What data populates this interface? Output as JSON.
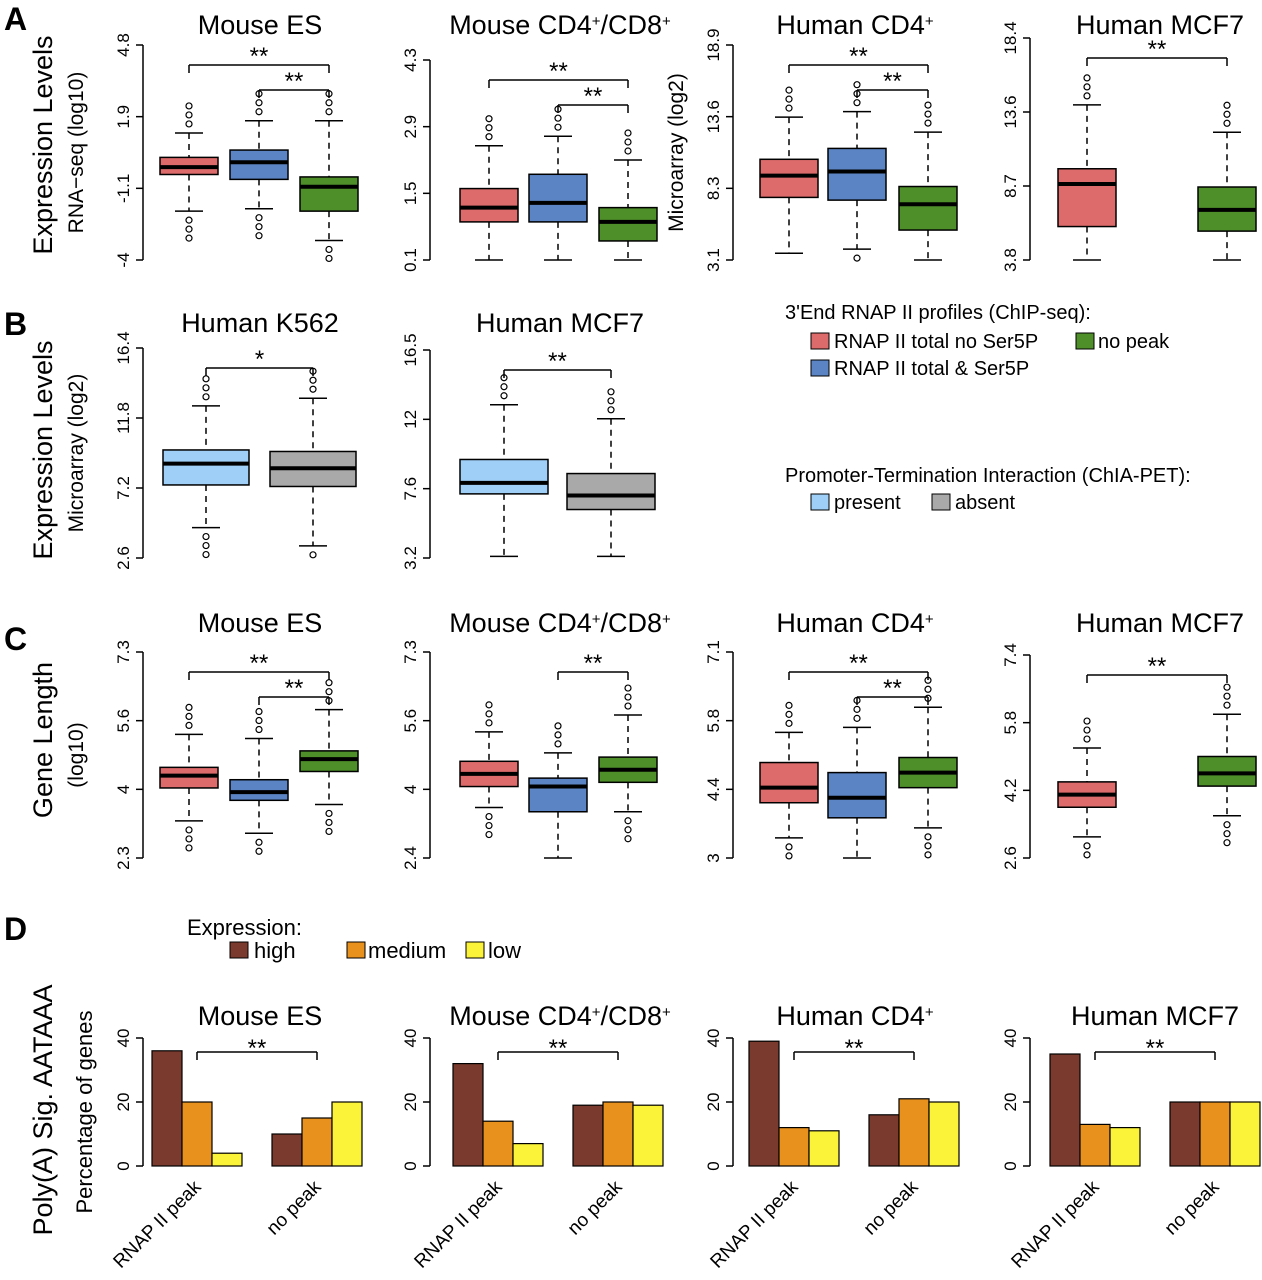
{
  "colors": {
    "red": "#de6b6b",
    "blue": "#5b84c4",
    "green": "#4e8f2a",
    "lightblue": "#9fcff7",
    "grey": "#a9a9a9",
    "high": "#7a3b2e",
    "medium": "#e8911c",
    "low": "#fbf23a"
  },
  "panel_letters": [
    "A",
    "B",
    "C",
    "D"
  ],
  "row_labels": {
    "A": "Expression Levels",
    "B": "Expression Levels",
    "C": "Gene Length",
    "D": "Poly(A) Sig. AATAAA"
  },
  "legend_rnap": {
    "title": "3'End RNAP II profiles (ChIP-seq):",
    "items": [
      {
        "label": "RNAP II total no Ser5P",
        "color": "red"
      },
      {
        "label": "no peak",
        "color": "green"
      },
      {
        "label": "RNAP II total & Ser5P",
        "color": "blue"
      }
    ]
  },
  "legend_chia": {
    "title": "Promoter-Termination Interaction (ChIA-PET):",
    "items": [
      {
        "label": "present",
        "color": "lightblue"
      },
      {
        "label": "absent",
        "color": "grey"
      }
    ]
  },
  "legend_expr": {
    "title": "Expression:",
    "items": [
      {
        "label": "high",
        "color": "high"
      },
      {
        "label": "medium",
        "color": "medium"
      },
      {
        "label": "low",
        "color": "low"
      }
    ]
  },
  "chart_data": [
    {
      "type": "box",
      "panel": "A",
      "title": "Mouse ES",
      "ylabel": "RNA−seq (log10)",
      "yticks": [
        "-4",
        "-1.1",
        "1.9",
        "4.8"
      ],
      "ylim": [
        -4,
        4.8
      ],
      "boxes": [
        {
          "color": "red",
          "whisker_low": -2.0,
          "q1": -0.5,
          "median": -0.2,
          "q3": 0.2,
          "whisker_high": 1.2
        },
        {
          "color": "blue",
          "whisker_low": -1.9,
          "q1": -0.7,
          "median": 0.0,
          "q3": 0.5,
          "whisker_high": 1.7
        },
        {
          "color": "green",
          "whisker_low": -3.2,
          "q1": -2.0,
          "median": -1.0,
          "q3": -0.6,
          "whisker_high": 1.7
        }
      ],
      "significance": [
        {
          "label": "**",
          "from": 1,
          "to": 3
        },
        {
          "label": "**",
          "from": 2,
          "to": 3
        }
      ]
    },
    {
      "type": "box",
      "panel": "A",
      "title": "Mouse CD4+/CD8+",
      "ylabel": "",
      "yticks": [
        "0.1",
        "1.5",
        "2.9",
        "4.3"
      ],
      "ylim": [
        0.1,
        4.3
      ],
      "boxes": [
        {
          "color": "red",
          "whisker_low": 0.1,
          "q1": 0.9,
          "median": 1.2,
          "q3": 1.6,
          "whisker_high": 2.5
        },
        {
          "color": "blue",
          "whisker_low": 0.1,
          "q1": 0.9,
          "median": 1.3,
          "q3": 1.9,
          "whisker_high": 2.7
        },
        {
          "color": "green",
          "whisker_low": 0.1,
          "q1": 0.5,
          "median": 0.9,
          "q3": 1.2,
          "whisker_high": 2.2
        }
      ],
      "significance": [
        {
          "label": "**",
          "from": 1,
          "to": 3
        },
        {
          "label": "**",
          "from": 2,
          "to": 3
        }
      ]
    },
    {
      "type": "box",
      "panel": "A",
      "title": "Human CD4+",
      "ylabel": "Microarray (log2)",
      "yticks": [
        "3.1",
        "8.3",
        "13.6",
        "18.9"
      ],
      "ylim": [
        3.1,
        18.9
      ],
      "boxes": [
        {
          "color": "red",
          "whisker_low": 3.6,
          "q1": 7.7,
          "median": 9.3,
          "q3": 10.5,
          "whisker_high": 13.6
        },
        {
          "color": "blue",
          "whisker_low": 3.9,
          "q1": 7.5,
          "median": 9.6,
          "q3": 11.3,
          "whisker_high": 14.0
        },
        {
          "color": "green",
          "whisker_low": 3.1,
          "q1": 5.3,
          "median": 7.2,
          "q3": 8.5,
          "whisker_high": 12.5
        }
      ],
      "significance": [
        {
          "label": "**",
          "from": 1,
          "to": 3
        },
        {
          "label": "**",
          "from": 2,
          "to": 3
        }
      ]
    },
    {
      "type": "box",
      "panel": "A",
      "title": "Human MCF7",
      "ylabel": "",
      "yticks": [
        "3.8",
        "8.7",
        "13.6",
        "18.4"
      ],
      "ylim": [
        3.8,
        18.4
      ],
      "boxes": [
        {
          "color": "red",
          "whisker_low": 3.8,
          "q1": 6.0,
          "median": 8.8,
          "q3": 9.8,
          "whisker_high": 14.0
        },
        {
          "color": "green",
          "whisker_low": 3.8,
          "q1": 5.7,
          "median": 7.1,
          "q3": 8.6,
          "whisker_high": 12.2
        }
      ],
      "significance": [
        {
          "label": "**",
          "from": 1,
          "to": 3
        }
      ]
    },
    {
      "type": "box",
      "panel": "B",
      "title": "Human K562",
      "ylabel": "Microarray (log2)",
      "yticks": [
        "2.6",
        "7.2",
        "11.8",
        "16.4"
      ],
      "ylim": [
        2.6,
        16.4
      ],
      "boxes": [
        {
          "color": "lightblue",
          "whisker_low": 4.6,
          "q1": 7.4,
          "median": 8.8,
          "q3": 9.7,
          "whisker_high": 12.6
        },
        {
          "color": "grey",
          "whisker_low": 3.4,
          "q1": 7.3,
          "median": 8.5,
          "q3": 9.6,
          "whisker_high": 13.1
        }
      ],
      "significance": [
        {
          "label": "*",
          "from": 1,
          "to": 2
        }
      ]
    },
    {
      "type": "box",
      "panel": "B",
      "title": "Human MCF7",
      "ylabel": "",
      "yticks": [
        "3.2",
        "7.6",
        "12",
        "16.5"
      ],
      "ylim": [
        3.2,
        16.5
      ],
      "boxes": [
        {
          "color": "lightblue",
          "whisker_low": 3.3,
          "q1": 7.3,
          "median": 8.0,
          "q3": 9.5,
          "whisker_high": 13.0
        },
        {
          "color": "grey",
          "whisker_low": 3.3,
          "q1": 6.3,
          "median": 7.2,
          "q3": 8.6,
          "whisker_high": 12.1
        }
      ],
      "significance": [
        {
          "label": "**",
          "from": 1,
          "to": 2
        }
      ]
    },
    {
      "type": "box",
      "panel": "C",
      "title": "Mouse ES",
      "ylabel": "(log10)",
      "yticks": [
        "2.3",
        "4",
        "5.6",
        "7.3"
      ],
      "ylim": [
        2.3,
        7.3
      ],
      "boxes": [
        {
          "color": "red",
          "whisker_low": 3.2,
          "q1": 4.0,
          "median": 4.3,
          "q3": 4.5,
          "whisker_high": 5.3
        },
        {
          "color": "blue",
          "whisker_low": 2.9,
          "q1": 3.7,
          "median": 3.9,
          "q3": 4.2,
          "whisker_high": 5.2
        },
        {
          "color": "green",
          "whisker_low": 3.6,
          "q1": 4.4,
          "median": 4.7,
          "q3": 4.9,
          "whisker_high": 5.9
        }
      ],
      "significance": [
        {
          "label": "**",
          "from": 1,
          "to": 3
        },
        {
          "label": "**",
          "from": 2,
          "to": 3
        }
      ]
    },
    {
      "type": "box",
      "panel": "C",
      "title": "Mouse CD4+/CD8+",
      "ylabel": "",
      "yticks": [
        "2.4",
        "4",
        "5.6",
        "7.3"
      ],
      "ylim": [
        2.4,
        7.3
      ],
      "boxes": [
        {
          "color": "red",
          "whisker_low": 3.6,
          "q1": 4.1,
          "median": 4.4,
          "q3": 4.7,
          "whisker_high": 5.4
        },
        {
          "color": "blue",
          "whisker_low": 2.4,
          "q1": 3.5,
          "median": 4.1,
          "q3": 4.3,
          "whisker_high": 4.9
        },
        {
          "color": "green",
          "whisker_low": 3.5,
          "q1": 4.2,
          "median": 4.5,
          "q3": 4.8,
          "whisker_high": 5.8
        }
      ],
      "significance": [
        {
          "label": "**",
          "from": 2,
          "to": 3
        }
      ]
    },
    {
      "type": "box",
      "panel": "C",
      "title": "Human CD4+",
      "ylabel": "",
      "yticks": [
        "3",
        "4.4",
        "5.8",
        "7.1"
      ],
      "ylim": [
        3,
        7.1
      ],
      "boxes": [
        {
          "color": "red",
          "whisker_low": 3.4,
          "q1": 4.1,
          "median": 4.4,
          "q3": 4.9,
          "whisker_high": 5.5
        },
        {
          "color": "blue",
          "whisker_low": 3.0,
          "q1": 3.8,
          "median": 4.2,
          "q3": 4.7,
          "whisker_high": 5.6
        },
        {
          "color": "green",
          "whisker_low": 3.6,
          "q1": 4.4,
          "median": 4.7,
          "q3": 5.0,
          "whisker_high": 6.0
        }
      ],
      "significance": [
        {
          "label": "**",
          "from": 1,
          "to": 3
        },
        {
          "label": "**",
          "from": 2,
          "to": 3
        }
      ]
    },
    {
      "type": "box",
      "panel": "C",
      "title": "Human MCF7",
      "ylabel": "",
      "yticks": [
        "2.6",
        "4.2",
        "5.8",
        "7.4"
      ],
      "ylim": [
        2.6,
        7.4
      ],
      "boxes": [
        {
          "color": "red",
          "whisker_low": 3.1,
          "q1": 3.8,
          "median": 4.1,
          "q3": 4.4,
          "whisker_high": 5.2
        },
        {
          "color": "green",
          "whisker_low": 3.6,
          "q1": 4.3,
          "median": 4.6,
          "q3": 5.0,
          "whisker_high": 6.0
        }
      ],
      "significance": [
        {
          "label": "**",
          "from": 1,
          "to": 3
        }
      ]
    },
    {
      "type": "bar",
      "panel": "D",
      "title": "Mouse ES",
      "ylabel": "Percentage of genes",
      "yticks": [
        "0",
        "20",
        "40"
      ],
      "ylim": [
        0,
        40
      ],
      "categories": [
        "RNAP II peak",
        "no peak"
      ],
      "series": [
        {
          "name": "high",
          "values": [
            36,
            10
          ]
        },
        {
          "name": "medium",
          "values": [
            20,
            15
          ]
        },
        {
          "name": "low",
          "values": [
            4,
            20
          ]
        }
      ],
      "significance": "**"
    },
    {
      "type": "bar",
      "panel": "D",
      "title": "Mouse CD4+/CD8+",
      "ylabel": "",
      "yticks": [
        "0",
        "20",
        "40"
      ],
      "ylim": [
        0,
        40
      ],
      "categories": [
        "RNAP II peak",
        "no peak"
      ],
      "series": [
        {
          "name": "high",
          "values": [
            32,
            19
          ]
        },
        {
          "name": "medium",
          "values": [
            14,
            20
          ]
        },
        {
          "name": "low",
          "values": [
            7,
            19
          ]
        }
      ],
      "significance": "**"
    },
    {
      "type": "bar",
      "panel": "D",
      "title": "Human CD4+",
      "ylabel": "",
      "yticks": [
        "0",
        "20",
        "40"
      ],
      "ylim": [
        0,
        40
      ],
      "categories": [
        "RNAP II peak",
        "no peak"
      ],
      "series": [
        {
          "name": "high",
          "values": [
            39,
            16
          ]
        },
        {
          "name": "medium",
          "values": [
            12,
            21
          ]
        },
        {
          "name": "low",
          "values": [
            11,
            20
          ]
        }
      ],
      "significance": "**"
    },
    {
      "type": "bar",
      "panel": "D",
      "title": "Human MCF7",
      "ylabel": "",
      "yticks": [
        "0",
        "20",
        "40"
      ],
      "ylim": [
        0,
        40
      ],
      "categories": [
        "RNAP II peak",
        "no peak"
      ],
      "series": [
        {
          "name": "high",
          "values": [
            35,
            20
          ]
        },
        {
          "name": "medium",
          "values": [
            13,
            20
          ]
        },
        {
          "name": "low",
          "values": [
            12,
            20
          ]
        }
      ],
      "significance": "**"
    }
  ]
}
